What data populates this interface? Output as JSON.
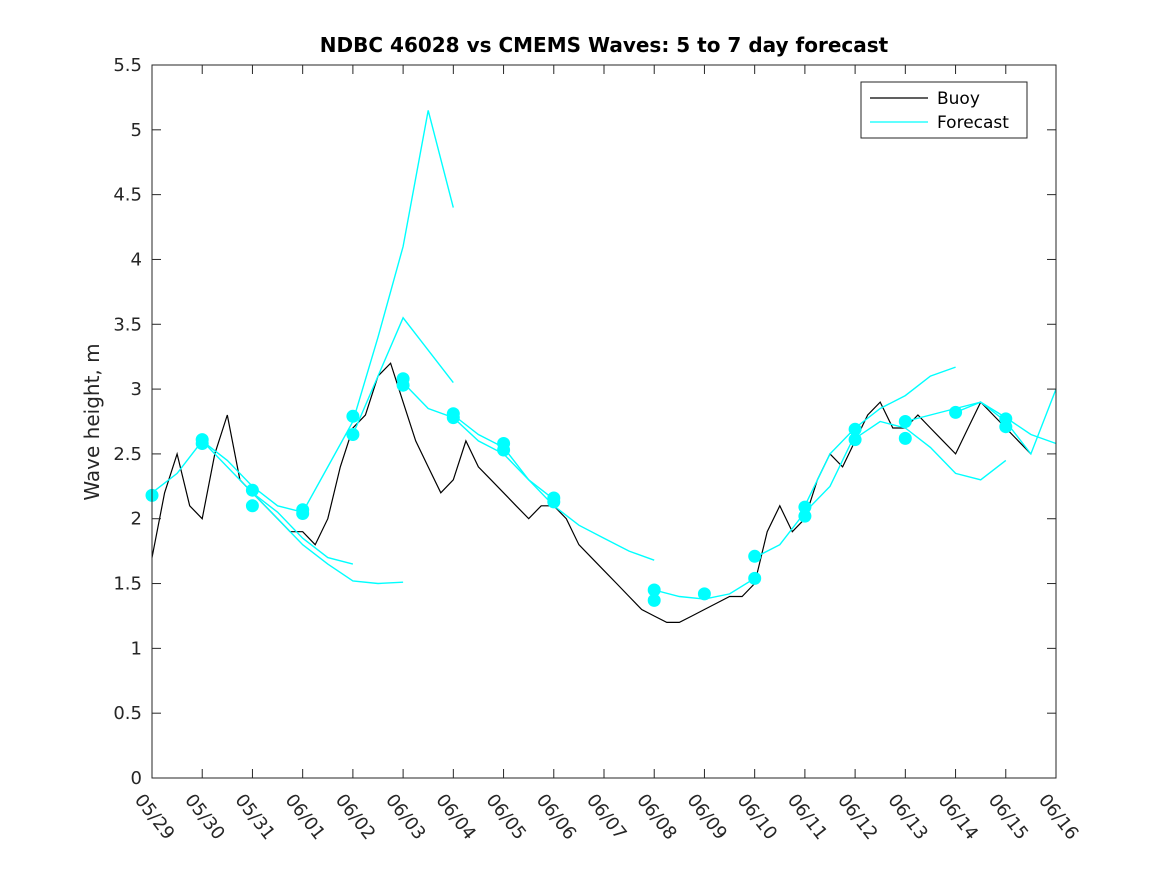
{
  "chart_data": {
    "type": "line",
    "title": "NDBC 46028 vs CMEMS Waves: 5 to 7 day forecast",
    "xlabel": "",
    "ylabel": "Wave height, m",
    "x_axis": {
      "type": "date",
      "tick_labels": [
        "05/29",
        "05/30",
        "05/31",
        "06/01",
        "06/02",
        "06/03",
        "06/04",
        "06/05",
        "06/06",
        "06/07",
        "06/08",
        "06/09",
        "06/10",
        "06/11",
        "06/12",
        "06/13",
        "06/14",
        "06/15",
        "06/16"
      ],
      "range": [
        "05/29",
        "06/16"
      ]
    },
    "ylim": [
      0,
      5.5
    ],
    "yticks": [
      "0",
      "0.5",
      "1",
      "1.5",
      "2",
      "2.5",
      "3",
      "3.5",
      "4",
      "4.5",
      "5",
      "5.5"
    ],
    "grid": false,
    "legend": {
      "position": "top-right",
      "entries": [
        "Buoy",
        "Forecast"
      ]
    },
    "colors": {
      "buoy": "#000000",
      "forecast": "#00ffff"
    },
    "series": [
      {
        "name": "Buoy",
        "x": [
          "05/29",
          "05/29 06:00",
          "05/29 12:00",
          "05/29 18:00",
          "05/30",
          "05/30 06:00",
          "05/30 12:00",
          "05/30 18:00",
          "05/31",
          "05/31 06:00",
          "05/31 12:00",
          "05/31 18:00",
          "06/01",
          "06/01 06:00",
          "06/01 12:00",
          "06/01 18:00",
          "06/02",
          "06/02 06:00",
          "06/02 12:00",
          "06/02 18:00",
          "06/03",
          "06/03 06:00",
          "06/03 12:00",
          "06/03 18:00",
          "06/04",
          "06/04 06:00",
          "06/04 12:00",
          "06/04 18:00",
          "06/05",
          "06/05 06:00",
          "06/05 12:00",
          "06/05 18:00",
          "06/06",
          "06/06 06:00",
          "06/06 12:00",
          "06/06 18:00",
          "06/07",
          "06/07 06:00",
          "06/07 12:00",
          "06/07 18:00",
          "06/08",
          "06/08 06:00",
          "06/08 12:00",
          "06/08 18:00",
          "06/09",
          "06/09 06:00",
          "06/09 12:00",
          "06/09 18:00",
          "06/10",
          "06/10 06:00",
          "06/10 12:00",
          "06/10 18:00",
          "06/11",
          "06/11 06:00",
          "06/11 12:00",
          "06/11 18:00",
          "06/12",
          "06/12 06:00",
          "06/12 12:00",
          "06/12 18:00",
          "06/13",
          "06/13 06:00",
          "06/13 12:00",
          "06/13 18:00",
          "06/14",
          "06/14 06:00",
          "06/14 12:00",
          "06/14 18:00",
          "06/15",
          "06/15 06:00",
          "06/15 12:00"
        ],
        "y": [
          1.7,
          2.2,
          2.5,
          2.1,
          2.0,
          2.5,
          2.8,
          2.3,
          2.2,
          2.1,
          2.0,
          1.9,
          1.9,
          1.8,
          2.0,
          2.4,
          2.7,
          2.8,
          3.1,
          3.2,
          2.9,
          2.6,
          2.4,
          2.2,
          2.3,
          2.6,
          2.4,
          2.3,
          2.2,
          2.1,
          2.0,
          2.1,
          2.1,
          2.0,
          1.8,
          1.7,
          1.6,
          1.5,
          1.4,
          1.3,
          1.25,
          1.2,
          1.2,
          1.25,
          1.3,
          1.35,
          1.4,
          1.4,
          1.5,
          1.9,
          2.1,
          1.9,
          2.0,
          2.3,
          2.5,
          2.4,
          2.6,
          2.8,
          2.9,
          2.7,
          2.7,
          2.8,
          2.7,
          2.6,
          2.5,
          2.7,
          2.9,
          2.8,
          2.7,
          2.6,
          2.5
        ]
      },
      {
        "name": "Forecast",
        "segments": [
          {
            "x": [
              "05/29",
              "05/29 12:00",
              "05/30",
              "05/30 12:00",
              "05/31",
              "05/31 12:00",
              "06/01"
            ],
            "y": [
              2.2,
              2.35,
              2.6,
              2.45,
              2.25,
              2.1,
              2.05
            ]
          },
          {
            "x": [
              "05/30",
              "05/30 12:00",
              "05/31",
              "05/31 12:00",
              "06/01",
              "06/01 12:00",
              "06/02"
            ],
            "y": [
              2.6,
              2.4,
              2.2,
              2.05,
              1.85,
              1.7,
              1.65
            ]
          },
          {
            "x": [
              "05/31",
              "05/31 12:00",
              "06/01",
              "06/01 12:00",
              "06/02",
              "06/02 12:00",
              "06/03"
            ],
            "y": [
              2.2,
              2.0,
              1.8,
              1.65,
              1.52,
              1.5,
              1.51
            ]
          },
          {
            "x": [
              "06/01",
              "06/01 12:00",
              "06/02",
              "06/02 12:00",
              "06/03",
              "06/03 12:00",
              "06/04"
            ],
            "y": [
              2.05,
              2.4,
              2.75,
              3.4,
              4.1,
              5.15,
              4.4
            ]
          },
          {
            "x": [
              "06/02",
              "06/02 12:00",
              "06/03",
              "06/03 12:00",
              "06/04"
            ],
            "y": [
              2.65,
              3.1,
              3.55,
              3.3,
              3.05
            ]
          },
          {
            "x": [
              "06/03",
              "06/03 12:00",
              "06/04",
              "06/04 12:00",
              "06/05",
              "06/05 12:00",
              "06/06"
            ],
            "y": [
              3.05,
              2.85,
              2.78,
              2.6,
              2.5,
              2.3,
              2.15
            ]
          },
          {
            "x": [
              "06/04",
              "06/04 12:00",
              "06/05",
              "06/05 12:00",
              "06/06",
              "06/06 12:00",
              "06/07",
              "06/07 12:00",
              "06/08"
            ],
            "y": [
              2.8,
              2.65,
              2.55,
              2.3,
              2.1,
              1.95,
              1.85,
              1.75,
              1.68
            ]
          },
          {
            "x": [
              "06/08",
              "06/08 12:00",
              "06/09",
              "06/09 12:00",
              "06/10"
            ],
            "y": [
              1.45,
              1.4,
              1.38,
              1.42,
              1.54
            ]
          },
          {
            "x": [
              "06/10",
              "06/10 12:00",
              "06/11",
              "06/11 12:00",
              "06/12"
            ],
            "y": [
              1.7,
              1.8,
              2.05,
              2.25,
              2.65
            ]
          },
          {
            "x": [
              "06/11",
              "06/11 12:00",
              "06/12",
              "06/12 12:00",
              "06/13",
              "06/13 12:00",
              "06/14"
            ],
            "y": [
              2.1,
              2.5,
              2.7,
              2.85,
              2.95,
              3.1,
              3.17
            ]
          },
          {
            "x": [
              "06/12",
              "06/12 12:00",
              "06/13",
              "06/13 12:00",
              "06/14",
              "06/14 12:00",
              "06/15"
            ],
            "y": [
              2.62,
              2.75,
              2.7,
              2.55,
              2.35,
              2.3,
              2.45
            ]
          },
          {
            "x": [
              "06/13",
              "06/13 12:00",
              "06/14",
              "06/14 12:00",
              "06/15",
              "06/15 12:00",
              "06/16"
            ],
            "y": [
              2.75,
              2.8,
              2.85,
              2.9,
              2.78,
              2.65,
              2.58
            ]
          },
          {
            "x": [
              "06/14",
              "06/14 12:00",
              "06/15",
              "06/15 12:00",
              "06/16"
            ],
            "y": [
              2.82,
              2.9,
              2.75,
              2.5,
              3.0
            ]
          }
        ],
        "markers": {
          "x": [
            "05/29",
            "05/30",
            "05/30",
            "05/31",
            "05/31",
            "06/01",
            "06/01",
            "06/02",
            "06/02",
            "06/03",
            "06/03",
            "06/04",
            "06/04",
            "06/05",
            "06/05",
            "06/06",
            "06/06",
            "06/08",
            "06/08",
            "06/09",
            "06/10",
            "06/10",
            "06/11",
            "06/11",
            "06/12",
            "06/12",
            "06/13",
            "06/13",
            "06/14",
            "06/15",
            "06/15"
          ],
          "y": [
            2.18,
            2.58,
            2.61,
            2.22,
            2.1,
            2.04,
            2.07,
            2.79,
            2.65,
            3.08,
            3.03,
            2.81,
            2.78,
            2.58,
            2.53,
            2.16,
            2.13,
            1.45,
            1.37,
            1.42,
            1.71,
            1.54,
            2.09,
            2.02,
            2.69,
            2.61,
            2.75,
            2.62,
            2.82,
            2.77,
            2.71
          ]
        }
      }
    ]
  }
}
